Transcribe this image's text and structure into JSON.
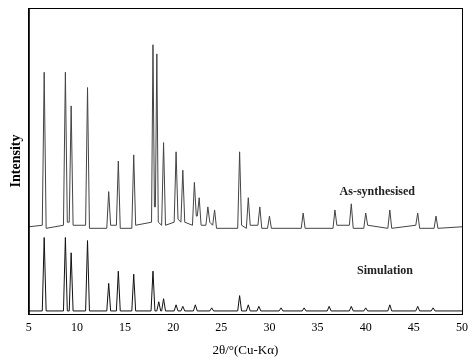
{
  "chart_data": {
    "type": "line",
    "x_label": "2θ/°(Cu-Kα)",
    "y_label": "Intensity",
    "xlim": [
      5,
      50
    ],
    "xticks": [
      5,
      10,
      15,
      20,
      25,
      30,
      35,
      40,
      45,
      50
    ],
    "ylim": [
      0,
      100
    ],
    "tick_labels": "x",
    "grid": false,
    "series": [
      {
        "name": "As-synthesised",
        "color": "#444444",
        "line_style": "solid",
        "x": [
          5,
          6.4,
          6.6,
          6.8,
          8.6,
          8.8,
          9.0,
          9.2,
          9.4,
          9.6,
          10.9,
          11.1,
          11.3,
          13.1,
          13.3,
          13.5,
          14.1,
          14.3,
          14.5,
          15.7,
          15.9,
          16.1,
          17.75,
          17.9,
          18.05,
          18.15,
          18.3,
          18.45,
          18.8,
          19.0,
          19.2,
          20.1,
          20.3,
          20.5,
          20.8,
          21.0,
          21.2,
          22.0,
          22.2,
          22.4,
          22.5,
          22.7,
          22.9,
          23.4,
          23.6,
          23.8,
          24.1,
          24.3,
          24.5,
          26.7,
          26.9,
          27.1,
          27.6,
          27.8,
          28.0,
          28.8,
          29.0,
          29.2,
          29.8,
          30.0,
          30.2,
          33.3,
          33.5,
          33.7,
          36.6,
          36.8,
          37.0,
          38.3,
          38.5,
          38.7,
          39.8,
          40.0,
          40.2,
          42.3,
          42.5,
          42.7,
          45.2,
          45.4,
          45.6,
          47.1,
          47.3,
          47.5,
          50
        ],
        "values": [
          28.5,
          29,
          79,
          28,
          29,
          79,
          30,
          30,
          68,
          29,
          29,
          74,
          28,
          28,
          40,
          29,
          29,
          50,
          28,
          28,
          52,
          29,
          30,
          88,
          35,
          35,
          85,
          30,
          29,
          56,
          29,
          30,
          53,
          31,
          30,
          47,
          30,
          29,
          43,
          32,
          32,
          38,
          29,
          29,
          35,
          30,
          29,
          34,
          28,
          28,
          53,
          29,
          28,
          38,
          29,
          29,
          35,
          28,
          28,
          32,
          28,
          28,
          33,
          28,
          28,
          34,
          29,
          29,
          36,
          28,
          28,
          33,
          29,
          28,
          34,
          28,
          29,
          33,
          28,
          28,
          32,
          28,
          28.5
        ]
      },
      {
        "name": "Simulation",
        "color": "#111111",
        "line_style": "solid",
        "x": [
          5,
          6.4,
          6.6,
          6.8,
          8.6,
          8.8,
          9.0,
          9.2,
          9.4,
          9.6,
          10.9,
          11.1,
          11.3,
          13.1,
          13.3,
          13.5,
          14.1,
          14.3,
          14.5,
          15.7,
          15.9,
          16.1,
          17.7,
          17.9,
          18.1,
          18.3,
          18.5,
          18.7,
          18.8,
          19.0,
          19.2,
          20.1,
          20.3,
          20.5,
          20.8,
          21.0,
          21.2,
          22.1,
          22.3,
          22.5,
          23.8,
          24.0,
          24.2,
          26.7,
          26.9,
          27.1,
          27.6,
          27.8,
          28.0,
          28.7,
          28.9,
          29.1,
          31.0,
          31.2,
          31.4,
          33.4,
          33.6,
          33.8,
          36.0,
          36.2,
          36.4,
          38.3,
          38.5,
          38.7,
          39.8,
          40.0,
          40.2,
          42.3,
          42.5,
          42.7,
          45.2,
          45.4,
          45.6,
          46.8,
          47.0,
          47.2,
          50
        ],
        "values": [
          1,
          1,
          25,
          1,
          1,
          25,
          1,
          1,
          20,
          1,
          1,
          24,
          1,
          1,
          10,
          1,
          1,
          14,
          1,
          1,
          13,
          1,
          1,
          14,
          1,
          1,
          4,
          1,
          1,
          5,
          1,
          1,
          3,
          1,
          1,
          2.5,
          1,
          1,
          3,
          1,
          1,
          2,
          1,
          1,
          6,
          1,
          1,
          3,
          1,
          1,
          2.5,
          1,
          1,
          2,
          1,
          1,
          2,
          1,
          1,
          2.5,
          1,
          1,
          2.5,
          1,
          1,
          2,
          1,
          1,
          3,
          1,
          1,
          2.5,
          1,
          1,
          2,
          1,
          1
        ]
      }
    ],
    "annotations": [
      {
        "text": "As-synthesised",
        "x": 41.2,
        "y": 38
      },
      {
        "text": "Simulation",
        "x": 42,
        "y": 12
      }
    ]
  }
}
